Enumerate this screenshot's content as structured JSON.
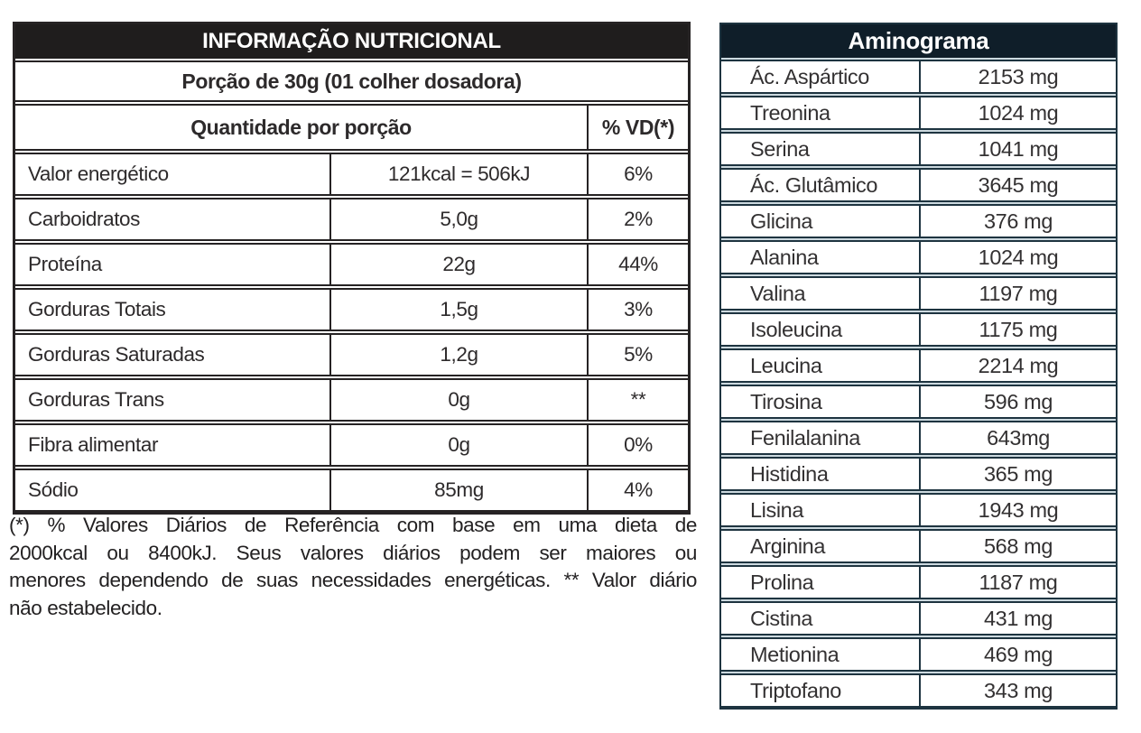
{
  "colors": {
    "nutri_header_bg": "#1f1d1d",
    "nutri_border": "#262324",
    "amino_header_bg": "#0f1e29",
    "amino_border": "#1e3440",
    "amino_gap": "#ccd9df",
    "header_text": "#ffffff",
    "body_text": "#2d2a2b"
  },
  "nutrition": {
    "title": "INFORMAÇÃO NUTRICIONAL",
    "portion": "Porção de 30g (01 colher dosadora)",
    "quantity_header": "Quantidade por porção",
    "vd_header": "% VD(*)",
    "rows": [
      {
        "label": "Valor energético",
        "amount": "121kcal = 506kJ",
        "vd": "6%"
      },
      {
        "label": "Carboidratos",
        "amount": "5,0g",
        "vd": "2%"
      },
      {
        "label": "Proteína",
        "amount": "22g",
        "vd": "44%"
      },
      {
        "label": "Gorduras Totais",
        "amount": "1,5g",
        "vd": "3%"
      },
      {
        "label": "Gorduras Saturadas",
        "amount": "1,2g",
        "vd": "5%"
      },
      {
        "label": "Gorduras Trans",
        "amount": "0g",
        "vd": "**"
      },
      {
        "label": "Fibra alimentar",
        "amount": "0g",
        "vd": "0%"
      },
      {
        "label": "Sódio",
        "amount": "85mg",
        "vd": "4%"
      }
    ],
    "footnote_lines": [
      "(*) % Valores Diários de Referência com base em uma dieta de",
      "2000kcal ou 8400kJ. Seus valores diários podem ser maiores ou",
      "menores dependendo de suas necessidades energéticas. ** Valor diário",
      "não estabelecido."
    ]
  },
  "aminogram": {
    "title": "Aminograma",
    "rows": [
      {
        "label": "Ác. Aspártico",
        "value": "2153 mg"
      },
      {
        "label": "Treonina",
        "value": "1024 mg"
      },
      {
        "label": "Serina",
        "value": "1041 mg"
      },
      {
        "label": "Ác. Glutâmico",
        "value": "3645 mg"
      },
      {
        "label": "Glicina",
        "value": "376 mg"
      },
      {
        "label": "Alanina",
        "value": "1024 mg"
      },
      {
        "label": "Valina",
        "value": "1197 mg"
      },
      {
        "label": "Isoleucina",
        "value": "1175 mg"
      },
      {
        "label": "Leucina",
        "value": "2214 mg"
      },
      {
        "label": "Tirosina",
        "value": "596 mg"
      },
      {
        "label": "Fenilalanina",
        "value": "643mg"
      },
      {
        "label": "Histidina",
        "value": "365 mg"
      },
      {
        "label": "Lisina",
        "value": "1943 mg"
      },
      {
        "label": "Arginina",
        "value": "568 mg"
      },
      {
        "label": "Prolina",
        "value": "1187 mg"
      },
      {
        "label": "Cistina",
        "value": "431 mg"
      },
      {
        "label": "Metionina",
        "value": "469 mg"
      },
      {
        "label": "Triptofano",
        "value": "343 mg"
      }
    ]
  }
}
